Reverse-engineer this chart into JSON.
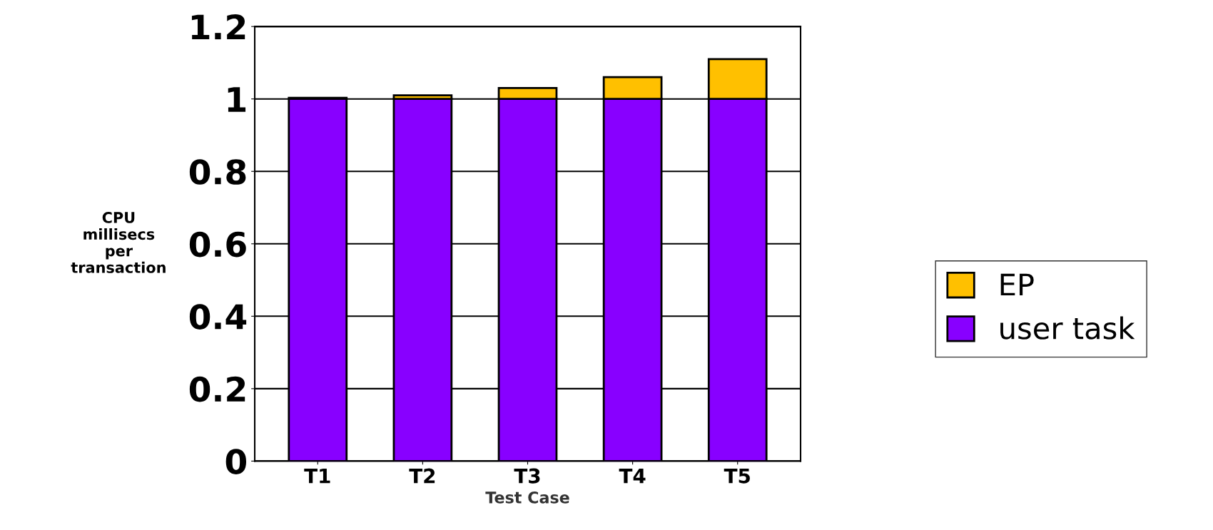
{
  "chart_data": {
    "type": "bar",
    "stacked": true,
    "xlabel": "Test Case",
    "ylabel": "CPU\nmillisecs\nper\ntransaction",
    "categories": [
      "T1",
      "T2",
      "T3",
      "T4",
      "T5"
    ],
    "series": [
      {
        "name": "user task",
        "color": "#8800ff",
        "values": [
          1.0,
          1.0,
          1.0,
          1.0,
          1.0
        ]
      },
      {
        "name": "EP",
        "color": "#ffc000",
        "values": [
          0.003,
          0.01,
          0.03,
          0.06,
          0.11
        ]
      }
    ],
    "ylim": [
      0,
      1.2
    ],
    "yticks": [
      0,
      0.2,
      0.4,
      0.6,
      0.8,
      1,
      1.2
    ],
    "grid": "y",
    "legend": "right"
  }
}
